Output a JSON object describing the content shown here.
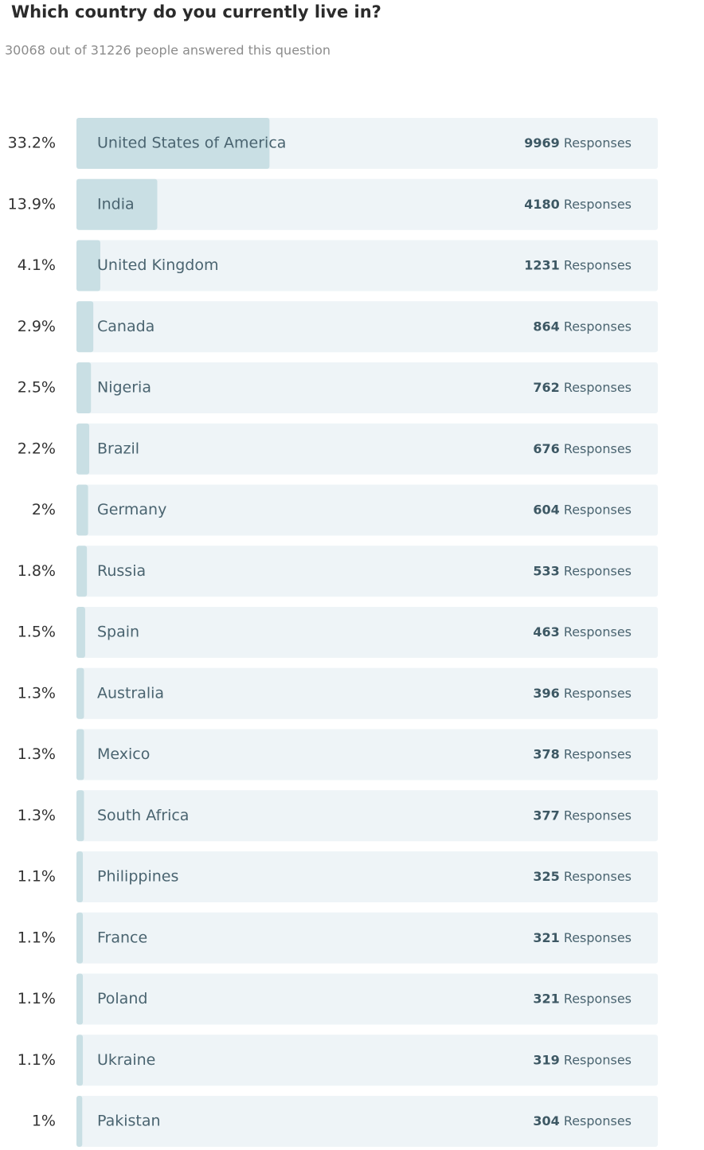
{
  "chart_data": {
    "type": "bar",
    "title": "Which country do you currently live in?",
    "subtitle": "30068 out of 31226 people answered this question",
    "categories": [
      "United States of America",
      "India",
      "United Kingdom",
      "Canada",
      "Nigeria",
      "Brazil",
      "Germany",
      "Russia",
      "Spain",
      "Australia",
      "Mexico",
      "South Africa",
      "Philippines",
      "France",
      "Poland",
      "Ukraine",
      "Pakistan"
    ],
    "values": [
      33.2,
      13.9,
      4.1,
      2.9,
      2.5,
      2.2,
      2,
      1.8,
      1.5,
      1.3,
      1.3,
      1.3,
      1.1,
      1.1,
      1.1,
      1.1,
      1
    ],
    "value_labels": [
      "33.2%",
      "13.9%",
      "4.1%",
      "2.9%",
      "2.5%",
      "2.2%",
      "2%",
      "1.8%",
      "1.5%",
      "1.3%",
      "1.3%",
      "1.3%",
      "1.1%",
      "1.1%",
      "1.1%",
      "1.1%",
      "1%"
    ],
    "responses": [
      9969,
      4180,
      1231,
      864,
      762,
      676,
      604,
      533,
      463,
      396,
      378,
      377,
      325,
      321,
      321,
      319,
      304
    ],
    "responses_label": "Responses",
    "xlim": [
      0,
      100
    ],
    "color": "#c9dfe4",
    "track_color": "#eef4f7"
  }
}
